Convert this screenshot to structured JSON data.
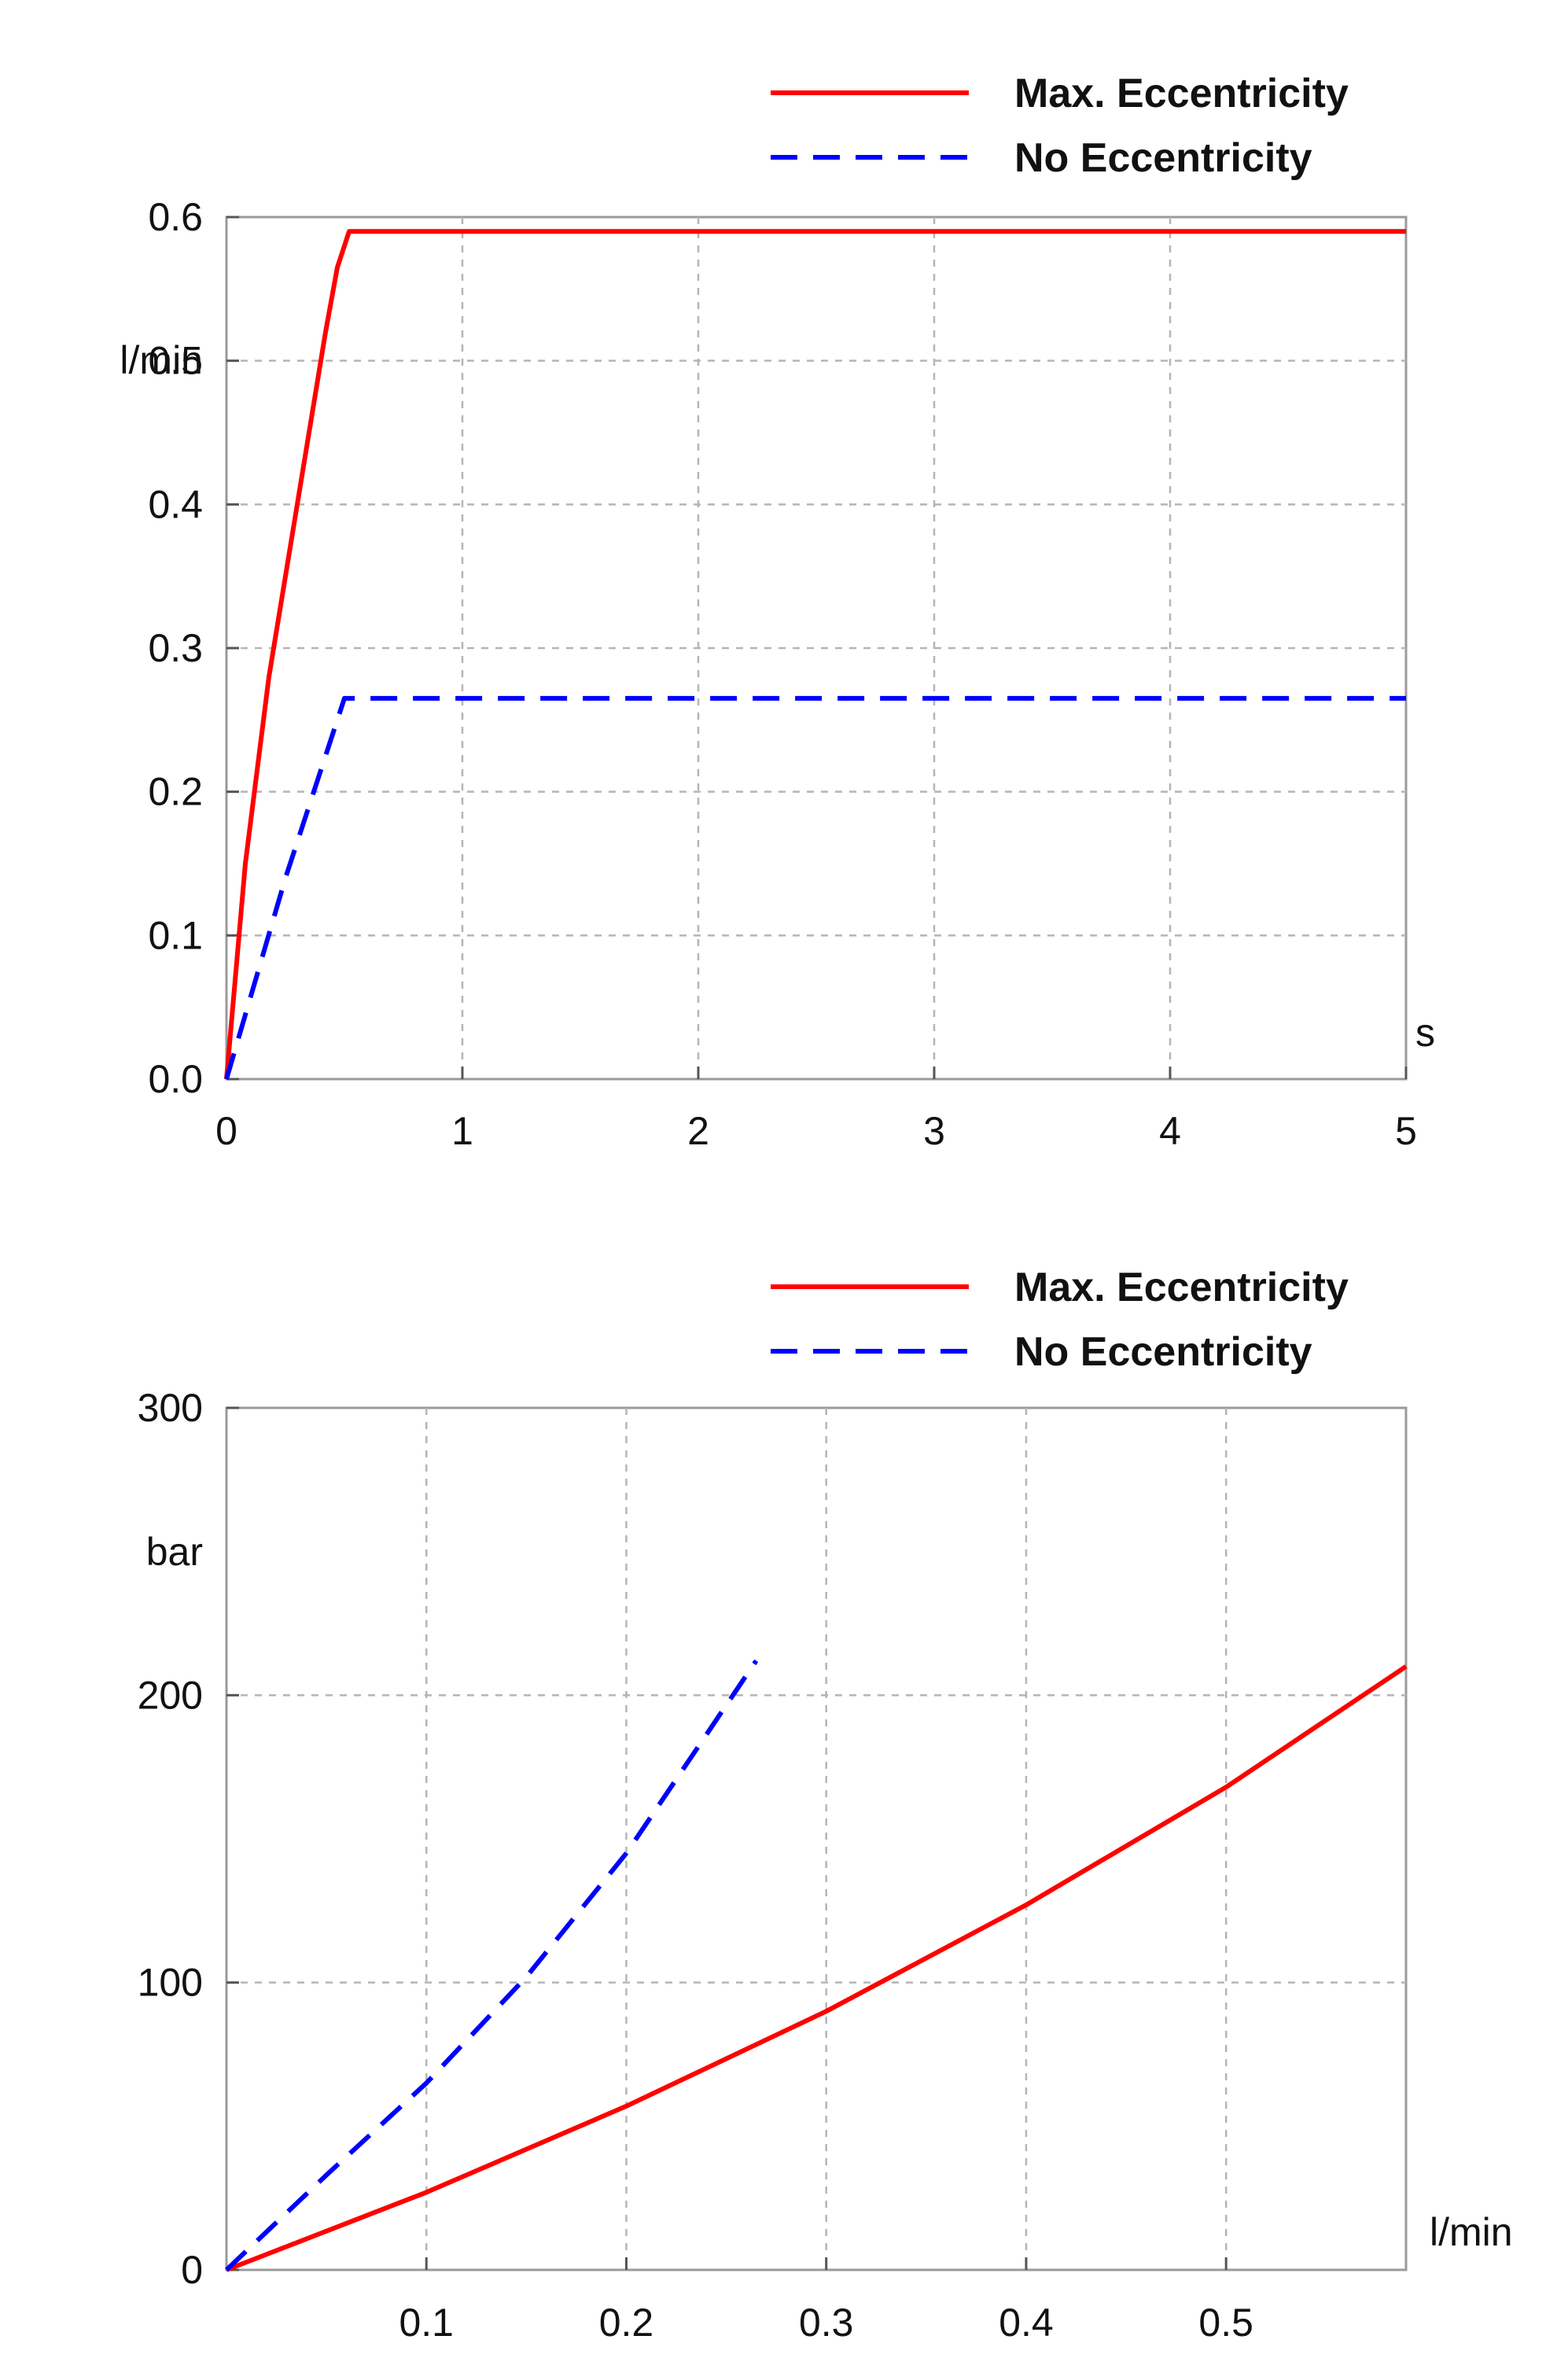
{
  "chart_data": [
    {
      "type": "line",
      "xlabel": "s",
      "ylabel": "l/min",
      "xlim": [
        0,
        5
      ],
      "ylim": [
        0,
        0.6
      ],
      "xticks": [
        "0",
        "1",
        "2",
        "3",
        "4",
        "5"
      ],
      "yticks": [
        "0.0",
        "0.1",
        "0.2",
        "0.3",
        "0.4",
        "0.5",
        "0.6"
      ],
      "grid": true,
      "legend_position": "top-right",
      "series": [
        {
          "name": "Max. Eccentricity",
          "color": "#ff0000",
          "style": "solid",
          "x": [
            0,
            0.08,
            0.18,
            0.3,
            0.42,
            0.47,
            0.52,
            5
          ],
          "y": [
            0,
            0.15,
            0.28,
            0.4,
            0.52,
            0.565,
            0.59,
            0.59
          ]
        },
        {
          "name": "No Eccentricity",
          "color": "#0000ff",
          "style": "dashed",
          "x": [
            0,
            0.25,
            0.5,
            5
          ],
          "y": [
            0,
            0.14,
            0.265,
            0.265
          ]
        }
      ]
    },
    {
      "type": "line",
      "xlabel": "l/min",
      "ylabel": "bar",
      "xlim": [
        0,
        0.59
      ],
      "ylim": [
        0,
        300
      ],
      "xticks": [
        "0.1",
        "0.2",
        "0.3",
        "0.4",
        "0.5"
      ],
      "xtick_values": [
        0.1,
        0.2,
        0.3,
        0.4,
        0.5
      ],
      "yticks": [
        "0",
        "100",
        "200",
        "300"
      ],
      "grid": true,
      "legend_position": "top-right",
      "series": [
        {
          "name": "Max. Eccentricity",
          "color": "#ff0000",
          "style": "solid",
          "x": [
            0,
            0.1,
            0.2,
            0.3,
            0.4,
            0.5,
            0.59
          ],
          "y": [
            0,
            27,
            57,
            90,
            127,
            168,
            210
          ]
        },
        {
          "name": "No Eccentricity",
          "color": "#0000ff",
          "style": "dashed",
          "x": [
            0,
            0.05,
            0.1,
            0.15,
            0.2,
            0.265
          ],
          "y": [
            0,
            33,
            65,
            102,
            145,
            212
          ]
        }
      ]
    }
  ]
}
